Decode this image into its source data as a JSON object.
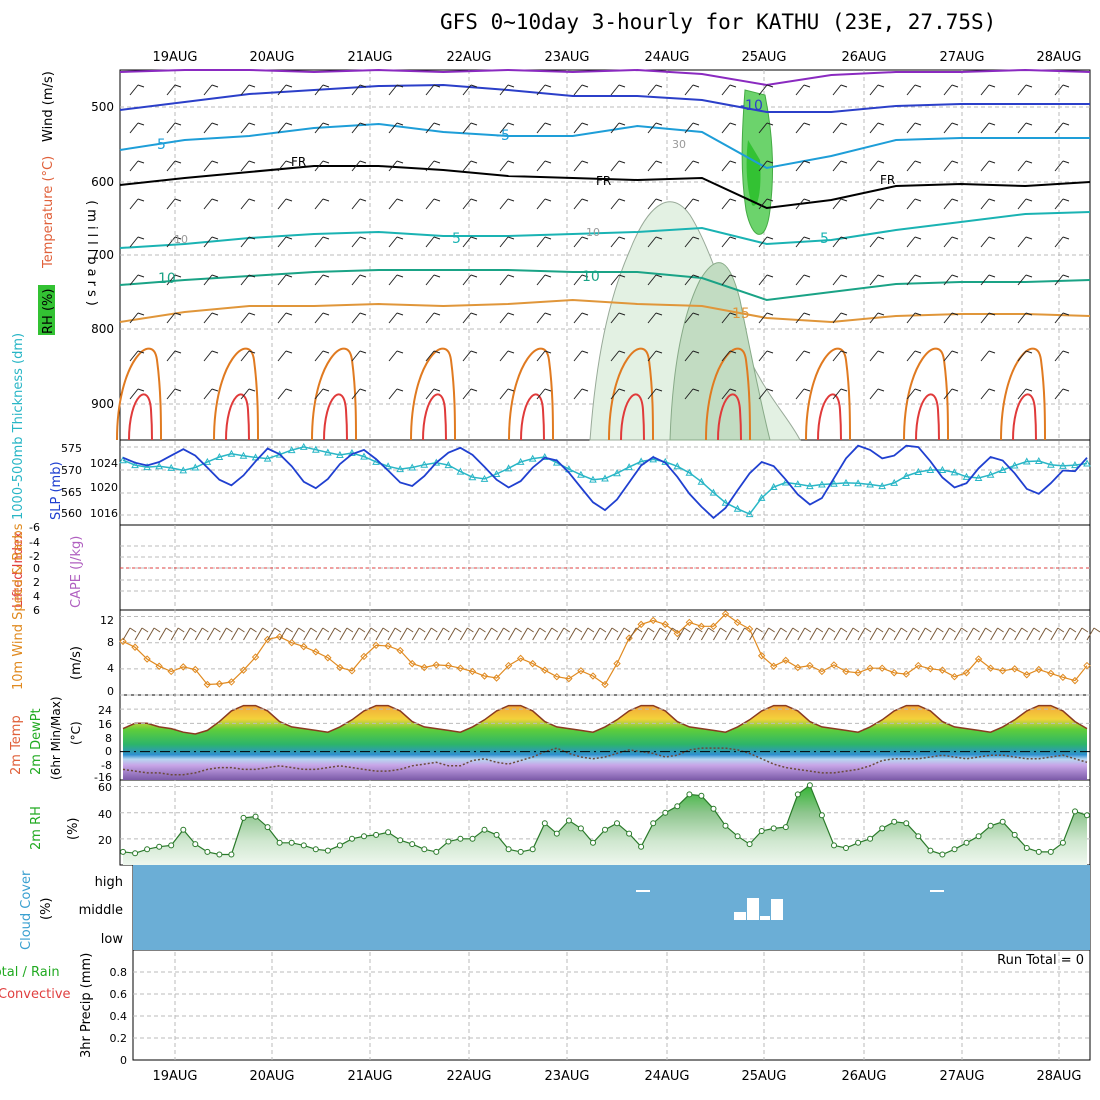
{
  "title": "GFS 0~10day 3-hourly for KATHU (23E, 27.75S)",
  "colors": {
    "temperature_label": "#e0603a",
    "wind_label": "#000000",
    "rh_label": "#22aa22",
    "thickness_label": "#29b6c6",
    "slp_label": "#2040d0",
    "cape_label": "#b060c0",
    "li_label": "#e04040",
    "wind10_label": "#e08a20",
    "temp2m_label": "#e0603a",
    "rh2m_label": "#22aa22",
    "cloud_label": "#3aa0d0",
    "precip_total_label": "#22aa22",
    "precip_conv_label": "#e04040",
    "cloud_fill": "#6baed6",
    "slp_line": "#2040d0",
    "thickness_line": "#29b6c6",
    "wind10_line": "#e08a20",
    "rh2m_line": "#2a7a2a"
  },
  "chart_data": [
    {
      "type": "heatmap",
      "panel": "upper-air",
      "ylabel": "(millibars)",
      "left_labels": [
        "RH (%)",
        "Temperature (°C)",
        "Wind (m/s)"
      ],
      "x_ticks": [
        "19AUG",
        "20AUG",
        "21AUG",
        "22AUG",
        "23AUG",
        "24AUG",
        "25AUG",
        "26AUG",
        "27AUG",
        "28AUG"
      ],
      "y_ticks": [
        500,
        600,
        700,
        800,
        900
      ],
      "ylim": [
        450,
        950
      ],
      "contour_labels": [
        "-10",
        "-5",
        "-5",
        "FR",
        "FR",
        "FR",
        "5",
        "5",
        "10",
        "10",
        "15",
        "10",
        "-10",
        "30"
      ],
      "grid": true
    },
    {
      "type": "line",
      "panel": "thickness-slp",
      "left_labels": [
        "1000-500mb Thickness (dm)",
        "SLP (mb)"
      ],
      "y_ticks_thickness": [
        560,
        565,
        570,
        575
      ],
      "y_ticks_slp": [
        1016,
        1020,
        1024
      ],
      "x": [
        0,
        1,
        2,
        3,
        4,
        5,
        6,
        7,
        8,
        9,
        10,
        11,
        12,
        13,
        14,
        15,
        16,
        17,
        18,
        19,
        20,
        21,
        22,
        23,
        24,
        25,
        26,
        27,
        28,
        29,
        30,
        31,
        32,
        33,
        34,
        35,
        36,
        37,
        38,
        39,
        40,
        41,
        42,
        43,
        44,
        45,
        46,
        47,
        48,
        49,
        50,
        51,
        52,
        53,
        54,
        55,
        56,
        57,
        58,
        59,
        60,
        61,
        62,
        63,
        64,
        65,
        66,
        67,
        68,
        69,
        70,
        71,
        72,
        73,
        74,
        75,
        76,
        77,
        78,
        79,
        80
      ],
      "series": [
        {
          "values": [
            1023.5,
            1022.8,
            1022.4,
            1022.9,
            1023.8,
            1024.7,
            1023.8,
            1022.1,
            1020.4,
            1019.6,
            1021.0,
            1023.0,
            1024.8,
            1024.0,
            1022.3,
            1020.1,
            1019.2,
            1020.5,
            1022.6,
            1024.0,
            1024.6,
            1023.3,
            1021.7,
            1020.0,
            1019.5,
            1020.9,
            1022.8,
            1024.2,
            1024.9,
            1023.9,
            1022.2,
            1020.4,
            1019.3,
            1020.2,
            1022.1,
            1023.5,
            1023.1,
            1021.4,
            1019.3,
            1017.2,
            1016.1,
            1017.6,
            1020.0,
            1022.4,
            1023.6,
            1022.8,
            1020.8,
            1018.4,
            1016.6,
            1015.0,
            1016.4,
            1018.9,
            1021.3,
            1022.9,
            1022.3,
            1020.4,
            1018.3,
            1016.9,
            1017.8,
            1020.6,
            1023.4,
            1025.2,
            1024.6,
            1023.4,
            1023.8,
            1025.2,
            1025.0,
            1023.0,
            1020.7,
            1019.3,
            1019.9,
            1022.0,
            1023.6,
            1023.1,
            1021.3,
            1019.1,
            1018.4,
            1019.9,
            1021.7,
            1021.6,
            1023.5
          ]
        },
        {
          "values": [
            572.0,
            570.8,
            570.3,
            570.5,
            570.1,
            569.5,
            570.2,
            571.6,
            572.8,
            573.6,
            573.1,
            572.7,
            572.4,
            573.4,
            574.5,
            575.3,
            574.6,
            573.9,
            573.3,
            573.8,
            572.9,
            571.6,
            570.5,
            569.8,
            570.2,
            570.9,
            571.4,
            570.8,
            569.2,
            567.8,
            567.4,
            568.6,
            570.0,
            571.6,
            572.4,
            572.8,
            571.4,
            569.8,
            568.4,
            567.2,
            567.5,
            568.8,
            570.3,
            571.7,
            572.2,
            571.6,
            570.5,
            568.9,
            566.7,
            564.0,
            561.5,
            560.0,
            558.7,
            562.7,
            565.4,
            566.5,
            566.1,
            565.6,
            566.0,
            566.2,
            566.4,
            566.3,
            566.0,
            565.6,
            566.4,
            568.1,
            569.1,
            569.6,
            569.6,
            569.0,
            567.9,
            567.6,
            568.4,
            569.6,
            570.7,
            571.7,
            571.8,
            570.9,
            570.6,
            570.8,
            571.2
          ]
        }
      ],
      "grid": true
    },
    {
      "type": "line",
      "panel": "cape-li",
      "left_labels": [
        "Lifted Index",
        "CAPE (J/kg)"
      ],
      "y_ticks": [
        -6,
        -4,
        -2,
        0,
        2,
        4,
        6
      ],
      "ylim": [
        -6,
        6
      ],
      "reference_line": 0,
      "grid": true
    },
    {
      "type": "line",
      "panel": "wind10m",
      "left_labels": [
        "10m Wind Speed & Barbs",
        "(m/s)"
      ],
      "y_ticks": [
        0,
        4,
        8,
        12
      ],
      "ylim": [
        0,
        13
      ],
      "x": [
        0,
        1,
        2,
        3,
        4,
        5,
        6,
        7,
        8,
        9,
        10,
        11,
        12,
        13,
        14,
        15,
        16,
        17,
        18,
        19,
        20,
        21,
        22,
        23,
        24,
        25,
        26,
        27,
        28,
        29,
        30,
        31,
        32,
        33,
        34,
        35,
        36,
        37,
        38,
        39,
        40,
        41,
        42,
        43,
        44,
        45,
        46,
        47,
        48,
        49,
        50,
        51,
        52,
        53,
        54,
        55,
        56,
        57,
        58,
        59,
        60,
        61,
        62,
        63,
        64,
        65,
        66,
        67,
        68,
        69,
        70,
        71,
        72,
        73,
        74,
        75,
        76,
        77,
        78,
        79,
        80
      ],
      "series": [
        {
          "values": [
            8.2,
            7.3,
            5.5,
            4.4,
            3.6,
            4.3,
            3.9,
            1.6,
            1.7,
            2.0,
            3.8,
            5.8,
            8.5,
            8.9,
            8.0,
            7.4,
            6.6,
            5.7,
            4.2,
            3.7,
            5.9,
            7.6,
            7.5,
            6.8,
            4.8,
            4.2,
            4.6,
            4.5,
            4.1,
            3.6,
            2.9,
            2.6,
            4.5,
            5.6,
            4.8,
            3.8,
            2.8,
            2.5,
            3.7,
            2.9,
            1.6,
            4.8,
            8.7,
            10.8,
            11.4,
            10.8,
            9.4,
            11.1,
            10.5,
            10.5,
            12.4,
            11.1,
            10.1,
            6.0,
            4.4,
            5.3,
            4.2,
            4.5,
            3.6,
            4.6,
            3.6,
            3.4,
            4.1,
            4.1,
            3.4,
            3.2,
            4.5,
            4.0,
            3.8,
            2.8,
            3.4,
            5.5,
            4.1,
            3.7,
            4.0,
            3.1,
            3.9,
            3.3,
            2.7,
            2.2,
            4.5
          ]
        }
      ],
      "grid": true
    },
    {
      "type": "area",
      "panel": "temp2m",
      "left_labels": [
        "2m Temp",
        "2m DewPt",
        "(6hr Min/Max)",
        "(°C)"
      ],
      "y_ticks": [
        -16,
        -8,
        0,
        8,
        16,
        24
      ],
      "ylim": [
        -16,
        32
      ],
      "x": [
        0,
        1,
        2,
        3,
        4,
        5,
        6,
        7,
        8,
        9,
        10,
        11,
        12,
        13,
        14,
        15,
        16,
        17,
        18,
        19,
        20,
        21,
        22,
        23,
        24,
        25,
        26,
        27,
        28,
        29,
        30,
        31,
        32,
        33,
        34,
        35,
        36,
        37,
        38,
        39,
        40,
        41,
        42,
        43,
        44,
        45,
        46,
        47,
        48,
        49,
        50,
        51,
        52,
        53,
        54,
        55,
        56,
        57,
        58,
        59,
        60,
        61,
        62,
        63,
        64,
        65,
        66,
        67,
        68,
        69,
        70,
        71,
        72,
        73,
        74,
        75,
        76,
        77,
        78,
        79,
        80
      ],
      "series": [
        {
          "values": [
            13,
            16,
            16,
            14,
            13,
            11,
            10,
            12,
            17,
            23,
            26,
            26,
            23,
            17,
            14,
            13,
            12,
            11,
            14,
            18,
            23,
            26,
            26,
            23,
            17,
            14,
            13,
            12,
            11,
            14,
            18,
            23,
            26,
            26,
            23,
            17,
            14,
            13,
            12,
            11,
            14,
            18,
            23,
            26,
            26,
            23,
            17,
            14,
            13,
            12,
            11,
            14,
            18,
            23,
            26,
            26,
            23,
            17,
            14,
            13,
            12,
            11,
            14,
            18,
            23,
            26,
            26,
            23,
            17,
            14,
            13,
            12,
            11,
            14,
            18,
            23,
            26,
            26,
            23,
            17,
            13
          ]
        },
        {
          "values": [
            -10,
            -11,
            -12,
            -12,
            -13,
            -13,
            -12,
            -10,
            -9,
            -9,
            -10,
            -10,
            -9,
            -8,
            -9,
            -10,
            -10,
            -9,
            -8,
            -9,
            -10,
            -11,
            -11,
            -10,
            -8,
            -7,
            -6,
            -8,
            -8,
            -5,
            -4,
            -6,
            -7,
            -5,
            -3,
            0,
            2,
            -1,
            -3,
            -4,
            -3,
            -1,
            1,
            0,
            -1,
            -3,
            -2,
            1,
            2,
            2,
            2,
            1,
            -1,
            -4,
            -7,
            -9,
            -10,
            -11,
            -12,
            -12,
            -11,
            -10,
            -8,
            -5,
            -4,
            -4,
            -4,
            -3,
            -2,
            -3,
            -4,
            -3,
            -2,
            -2,
            -3,
            -4,
            -4,
            -3,
            -2,
            -4,
            -6
          ]
        }
      ],
      "grid": true
    },
    {
      "type": "area",
      "panel": "rh2m",
      "left_labels": [
        "2m RH",
        "(%)"
      ],
      "y_ticks": [
        20,
        40,
        60
      ],
      "ylim": [
        0,
        65
      ],
      "x": [
        0,
        1,
        2,
        3,
        4,
        5,
        6,
        7,
        8,
        9,
        10,
        11,
        12,
        13,
        14,
        15,
        16,
        17,
        18,
        19,
        20,
        21,
        22,
        23,
        24,
        25,
        26,
        27,
        28,
        29,
        30,
        31,
        32,
        33,
        34,
        35,
        36,
        37,
        38,
        39,
        40,
        41,
        42,
        43,
        44,
        45,
        46,
        47,
        48,
        49,
        50,
        51,
        52,
        53,
        54,
        55,
        56,
        57,
        58,
        59,
        60,
        61,
        62,
        63,
        64,
        65,
        66,
        67,
        68,
        69,
        70,
        71,
        72,
        73,
        74,
        75,
        76,
        77,
        78,
        79,
        80
      ],
      "series": [
        {
          "values": [
            10,
            9,
            12,
            14,
            15,
            27,
            16,
            10,
            8,
            8,
            36,
            37,
            29,
            17,
            17,
            15,
            12,
            11,
            15,
            20,
            22,
            23,
            25,
            19,
            16,
            12,
            10,
            18,
            20,
            20,
            27,
            23,
            12,
            10,
            12,
            32,
            24,
            34,
            28,
            17,
            27,
            32,
            24,
            14,
            32,
            40,
            45,
            54,
            53,
            43,
            30,
            22,
            16,
            26,
            28,
            29,
            54,
            61,
            38,
            15,
            13,
            17,
            20,
            28,
            33,
            32,
            22,
            11,
            8,
            12,
            17,
            22,
            30,
            33,
            23,
            13,
            10,
            10,
            17,
            41,
            38
          ]
        }
      ],
      "grid": true
    },
    {
      "type": "heatmap",
      "panel": "cloud",
      "left_labels": [
        "Cloud Cover",
        "(%)"
      ],
      "y_ticks": [
        "high",
        "middle",
        "low"
      ],
      "grid": true
    },
    {
      "type": "bar",
      "panel": "precip",
      "left_labels": [
        "Total / Rain",
        "Convective",
        "3hr Precip (mm)"
      ],
      "y_ticks": [
        0,
        0.2,
        0.4,
        0.6,
        0.8
      ],
      "ylim": [
        0,
        1
      ],
      "run_total_label": "Run Total = 0",
      "grid": true
    }
  ]
}
